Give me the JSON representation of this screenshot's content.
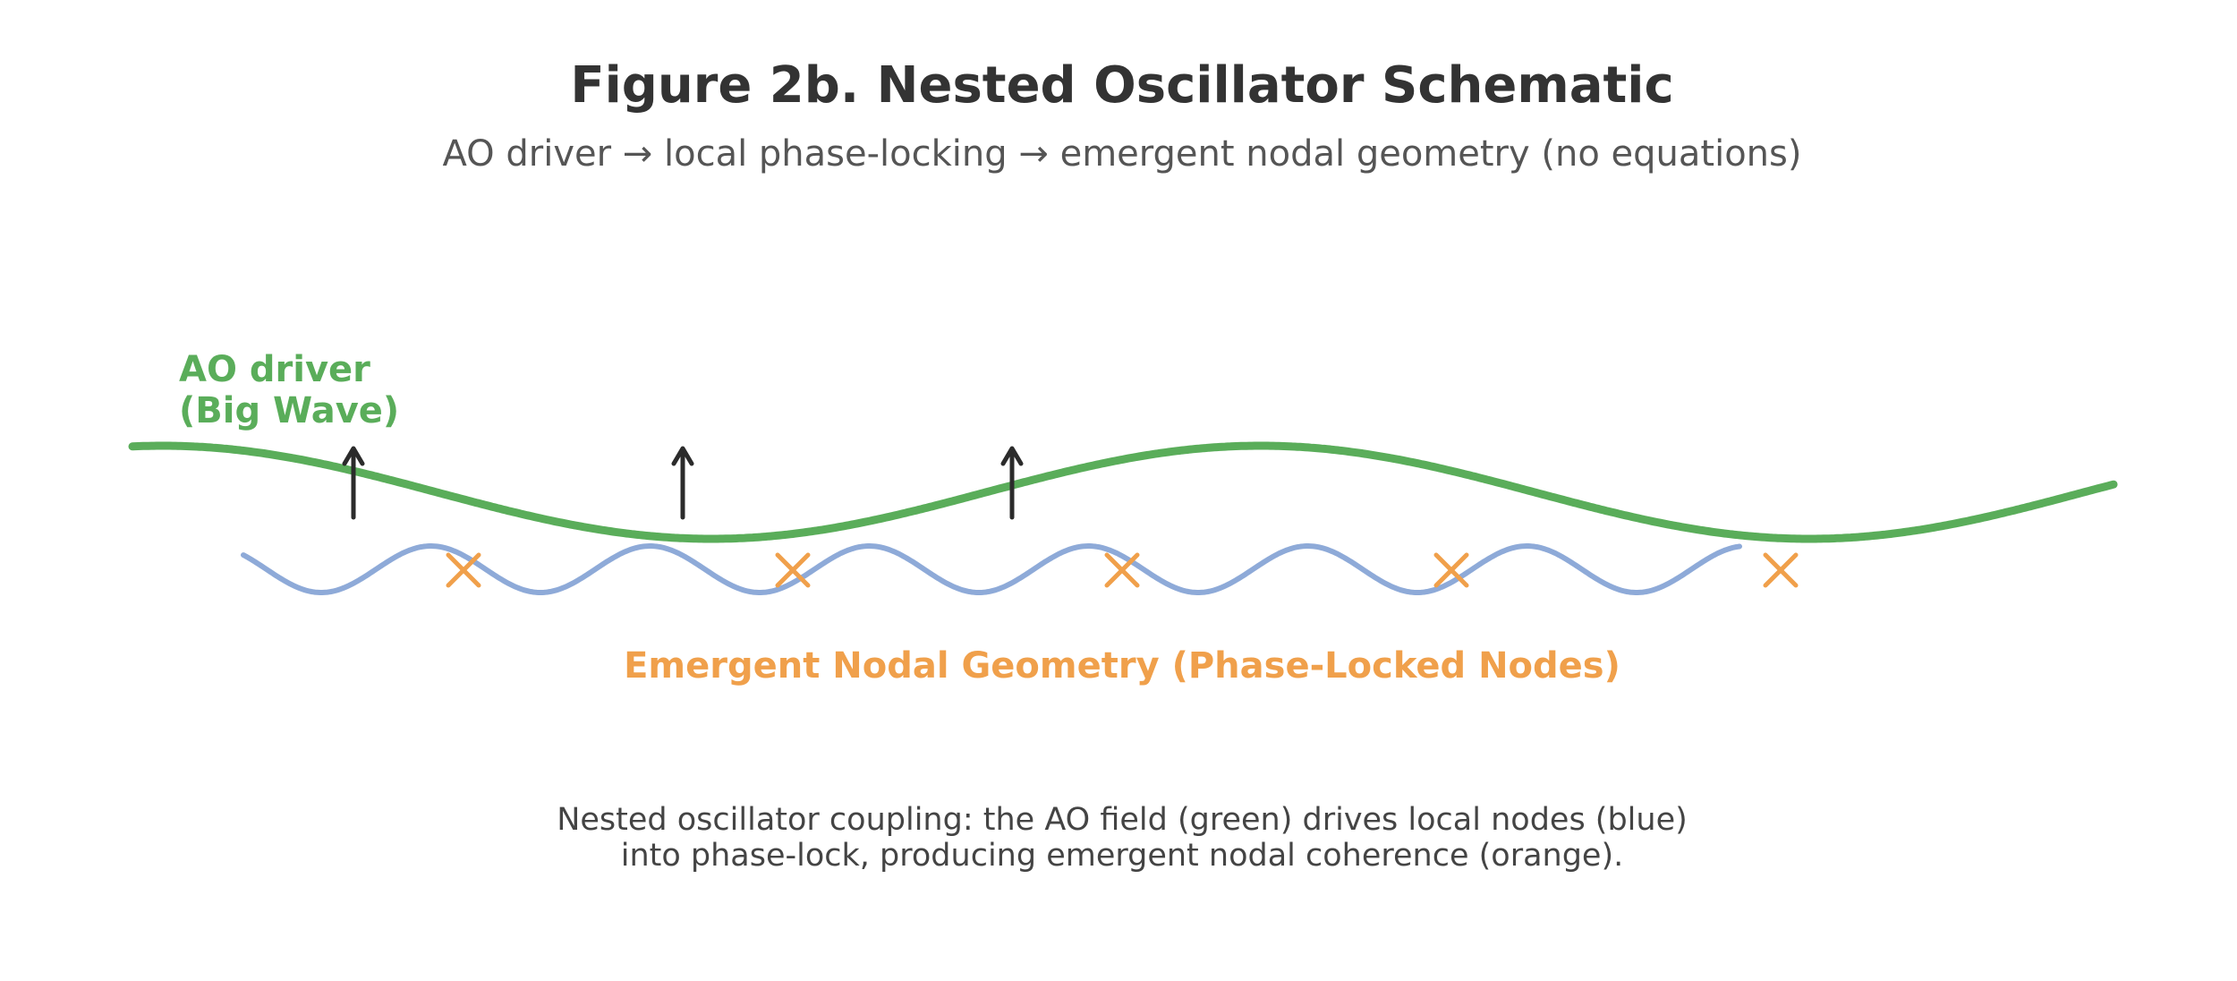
{
  "figure": {
    "title": "Figure 2b. Nested Oscillator Schematic",
    "subtitle": "AO driver → local phase-locking → emergent nodal geometry (no equations)"
  },
  "driver": {
    "label_line1": "AO driver",
    "label_line2": "(Big Wave)",
    "color": "#5aad5a",
    "arrow_color": "#2b2b2b",
    "arrow_count": 3
  },
  "local_nodes": {
    "color": "#8eaad8"
  },
  "nodes": {
    "label": "Emergent Nodal Geometry (Phase-Locked Nodes)",
    "color": "#f0a04b",
    "count": 5
  },
  "caption": {
    "line1": "Nested oscillator coupling: the AO field (green) drives local nodes (blue)",
    "line2": "into phase-lock, producing emergent nodal coherence (orange)."
  }
}
